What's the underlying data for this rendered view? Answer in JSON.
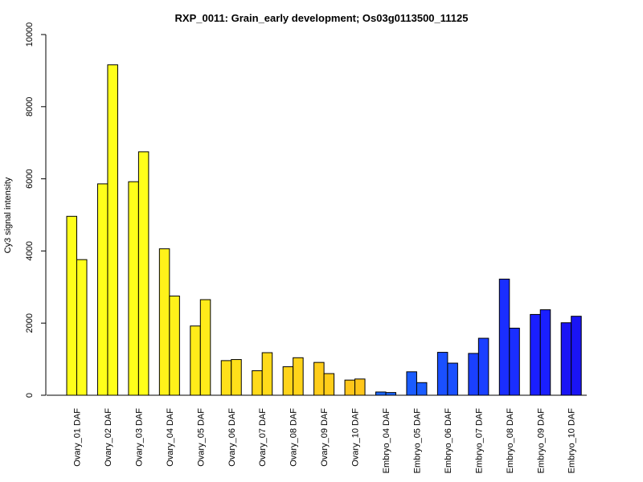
{
  "chart_data": {
    "type": "bar",
    "title": "RXP_0011: Grain_early development; Os03g0113500_11125",
    "ylabel": "Cy3 signal intensity",
    "xlabel": "",
    "ylim": [
      0,
      10000
    ],
    "yticks": [
      0,
      2000,
      4000,
      6000,
      8000,
      10000
    ],
    "grid": false,
    "categories": [
      "Ovary_01 DAF",
      "Ovary_02 DAF",
      "Ovary_03 DAF",
      "Ovary_04 DAF",
      "Ovary_05 DAF",
      "Ovary_06 DAF",
      "Ovary_07 DAF",
      "Ovary_08 DAF",
      "Ovary_09 DAF",
      "Ovary_10 DAF",
      "Embryo_04 DAF",
      "Embryo_05 DAF",
      "Embryo_06 DAF",
      "Embryo_07 DAF",
      "Embryo_08 DAF",
      "Embryo_09 DAF",
      "Embryo_10 DAF"
    ],
    "series": [
      {
        "values": [
          4960,
          5860,
          5920,
          4060,
          1920,
          960,
          680,
          790,
          910,
          420,
          90,
          650,
          1190,
          1160,
          3220,
          2240,
          2010
        ]
      },
      {
        "values": [
          3760,
          9160,
          6750,
          2750,
          2650,
          990,
          1180,
          1040,
          600,
          450,
          75,
          350,
          890,
          1580,
          1860,
          2370,
          2190
        ]
      }
    ],
    "bar_colors": [
      "#FFFF1A",
      "#FFFF1A",
      "#FFFF1A",
      "#FFF21A",
      "#FFEB1A",
      "#FFE01A",
      "#FFDA1A",
      "#FFD41A",
      "#FFCD1A",
      "#FFC61A",
      "#1A66FF",
      "#1A5CFF",
      "#1A50FF",
      "#1A40FF",
      "#1A2EFF",
      "#1A1FFF",
      "#1A14F5"
    ]
  }
}
